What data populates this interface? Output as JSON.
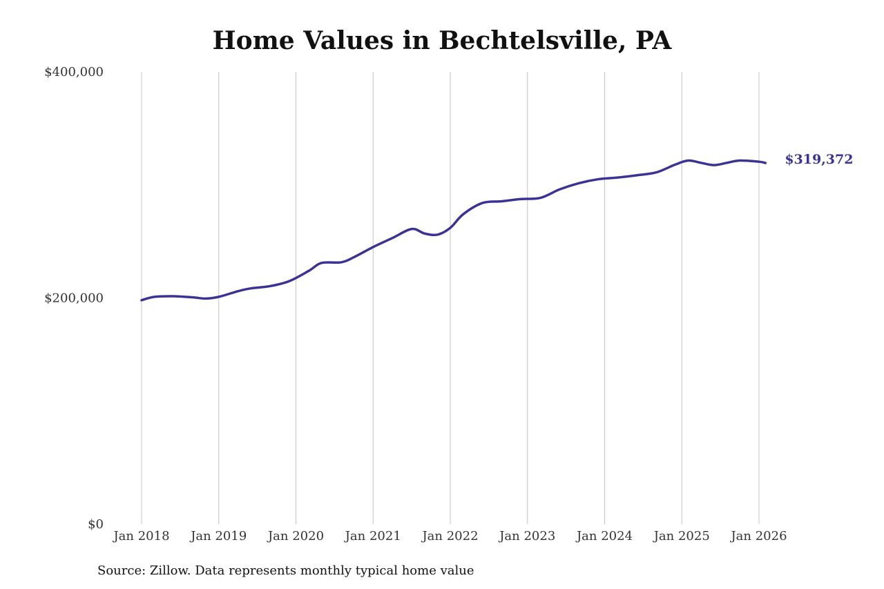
{
  "title": "Home Values in Bechtelsville, PA",
  "source": "Source: Zillow. Data represents monthly typical home value",
  "colors": {
    "line": "#3a3393",
    "grid": "#c4c4c4",
    "text": "#333333"
  },
  "chart_data": {
    "type": "line",
    "title": "Home Values in Bechtelsville, PA",
    "xlabel": "",
    "ylabel": "",
    "grid": "vertical",
    "ylim": [
      0,
      400000
    ],
    "xlim": [
      "2018-01",
      "2026-02"
    ],
    "y_ticks": [
      {
        "value": 0,
        "label": "$0"
      },
      {
        "value": 200000,
        "label": "$200,000"
      },
      {
        "value": 400000,
        "label": "$400,000"
      }
    ],
    "x_ticks": [
      {
        "date": "2018-01",
        "label": "Jan 2018"
      },
      {
        "date": "2019-01",
        "label": "Jan 2019"
      },
      {
        "date": "2020-01",
        "label": "Jan 2020"
      },
      {
        "date": "2021-01",
        "label": "Jan 2021"
      },
      {
        "date": "2022-01",
        "label": "Jan 2022"
      },
      {
        "date": "2023-01",
        "label": "Jan 2023"
      },
      {
        "date": "2024-01",
        "label": "Jan 2024"
      },
      {
        "date": "2025-01",
        "label": "Jan 2025"
      },
      {
        "date": "2026-01",
        "label": "Jan 2026"
      }
    ],
    "end_label": "$319,372",
    "series": [
      {
        "points": [
          {
            "date": "2018-01",
            "value": 198000
          },
          {
            "date": "2018-03",
            "value": 201000
          },
          {
            "date": "2018-06",
            "value": 201500
          },
          {
            "date": "2018-09",
            "value": 200500
          },
          {
            "date": "2018-11",
            "value": 199500
          },
          {
            "date": "2019-01",
            "value": 201000
          },
          {
            "date": "2019-04",
            "value": 206000
          },
          {
            "date": "2019-06",
            "value": 208500
          },
          {
            "date": "2019-09",
            "value": 210500
          },
          {
            "date": "2019-12",
            "value": 215000
          },
          {
            "date": "2020-03",
            "value": 224000
          },
          {
            "date": "2020-05",
            "value": 231000
          },
          {
            "date": "2020-08",
            "value": 231500
          },
          {
            "date": "2020-10",
            "value": 236000
          },
          {
            "date": "2021-01",
            "value": 245000
          },
          {
            "date": "2021-04",
            "value": 253000
          },
          {
            "date": "2021-07",
            "value": 261000
          },
          {
            "date": "2021-09",
            "value": 257000
          },
          {
            "date": "2021-11",
            "value": 256000
          },
          {
            "date": "2022-01",
            "value": 262000
          },
          {
            "date": "2022-03",
            "value": 274000
          },
          {
            "date": "2022-06",
            "value": 284000
          },
          {
            "date": "2022-09",
            "value": 285500
          },
          {
            "date": "2022-12",
            "value": 287500
          },
          {
            "date": "2023-03",
            "value": 288500
          },
          {
            "date": "2023-06",
            "value": 296000
          },
          {
            "date": "2023-09",
            "value": 301500
          },
          {
            "date": "2023-12",
            "value": 305000
          },
          {
            "date": "2024-03",
            "value": 306500
          },
          {
            "date": "2024-06",
            "value": 308500
          },
          {
            "date": "2024-09",
            "value": 311000
          },
          {
            "date": "2024-12",
            "value": 318000
          },
          {
            "date": "2025-02",
            "value": 321500
          },
          {
            "date": "2025-04",
            "value": 319500
          },
          {
            "date": "2025-06",
            "value": 317500
          },
          {
            "date": "2025-08",
            "value": 319500
          },
          {
            "date": "2025-10",
            "value": 321500
          },
          {
            "date": "2026-01",
            "value": 320500
          },
          {
            "date": "2026-02",
            "value": 319372
          }
        ]
      }
    ]
  }
}
